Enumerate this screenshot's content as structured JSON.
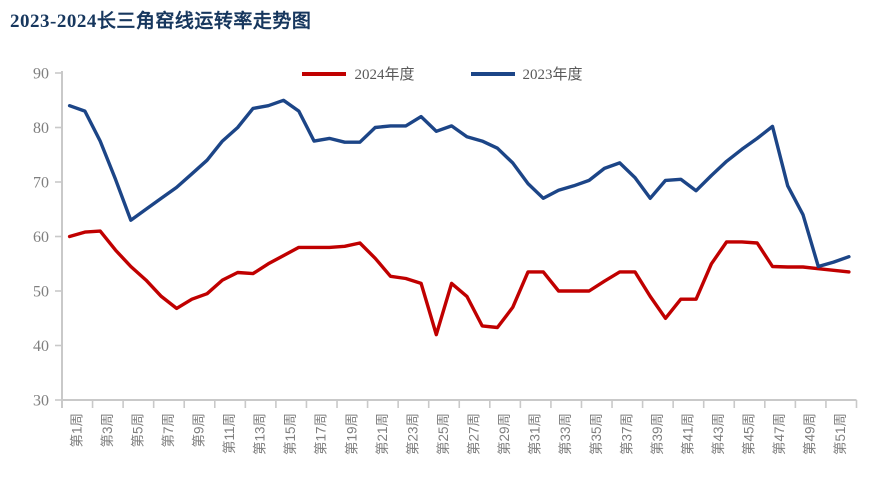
{
  "title": "2023-2024长三角窑线运转率走势图",
  "legend": {
    "items": [
      {
        "label": "2024年度",
        "color": "#c00000"
      },
      {
        "label": "2023年度",
        "color": "#1c4587"
      }
    ]
  },
  "axis": {
    "line_color": "#c9c9c9",
    "tick_label_color": "#7f7f7f"
  },
  "chart_data": {
    "type": "line",
    "title": "2023-2024长三角窑线运转率走势图",
    "xlabel": "",
    "ylabel": "",
    "x_unit": "week",
    "n_points": 52,
    "x_tick_labels": [
      "第1周",
      "第3周",
      "第5周",
      "第7周",
      "第9周",
      "第11周",
      "第13周",
      "第15周",
      "第17周",
      "第19周",
      "第21周",
      "第23周",
      "第25周",
      "第27周",
      "第29周",
      "第31周",
      "第33周",
      "第35周",
      "第37周",
      "第39周",
      "第41周",
      "第43周",
      "第45周",
      "第47周",
      "第49周",
      "第51周"
    ],
    "ylim": [
      30,
      90
    ],
    "yticks": [
      30,
      40,
      50,
      60,
      70,
      80,
      90
    ],
    "grid": false,
    "legend_position": "top-center",
    "series": [
      {
        "name": "2024年度",
        "color": "#c00000",
        "values": [
          60,
          60.8,
          61,
          57.5,
          54.5,
          52,
          49,
          46.8,
          48.5,
          49.5,
          52,
          53.4,
          53.2,
          55,
          56.5,
          58,
          58,
          58,
          58.2,
          58.8,
          56,
          52.7,
          52.3,
          51.4,
          42,
          51.4,
          49,
          43.6,
          43.3,
          47,
          53.5,
          53.5,
          50,
          50,
          50,
          51.8,
          53.5,
          53.5,
          49,
          45,
          48.5,
          48.5,
          55,
          59,
          59,
          58.8,
          54.5,
          54.4,
          54.4,
          54.1,
          53.8,
          53.5
        ]
      },
      {
        "name": "2023年度",
        "color": "#1c4587",
        "values": [
          84,
          83,
          77.5,
          70.5,
          63,
          65,
          67,
          69,
          71.5,
          74,
          77.5,
          80,
          83.5,
          84,
          85,
          83,
          77.5,
          78,
          77.3,
          77.3,
          80,
          80.3,
          80.3,
          82,
          79.3,
          80.3,
          78.3,
          77.5,
          76.2,
          73.5,
          69.7,
          67,
          68.5,
          69.3,
          70.3,
          72.5,
          73.5,
          70.8,
          67,
          70.3,
          70.5,
          68.4,
          71.2,
          73.8,
          76,
          78,
          80.2,
          69.3,
          64,
          54.5,
          55.3,
          56.3
        ]
      }
    ]
  }
}
